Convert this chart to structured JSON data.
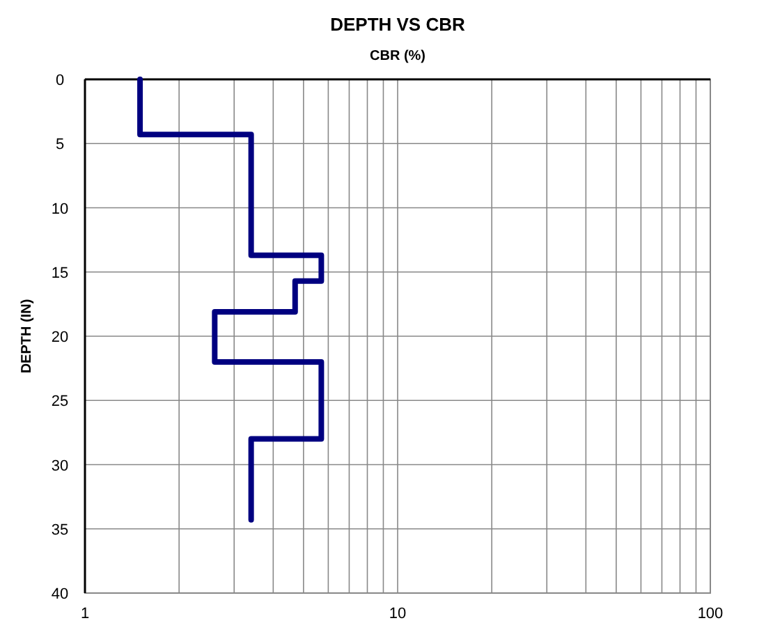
{
  "chart_data": {
    "type": "line",
    "title": "DEPTH VS CBR",
    "xlabel": "CBR (%)",
    "ylabel": "DEPTH (IN)",
    "x": [
      1.5,
      1.5,
      3.4,
      3.4,
      5.7,
      5.7,
      4.7,
      4.7,
      2.6,
      2.6,
      5.7,
      5.7,
      3.4,
      3.4
    ],
    "series": [
      {
        "color": "#000080",
        "values": [
          0,
          4.3,
          4.3,
          13.7,
          13.7,
          15.7,
          15.7,
          18.1,
          18.1,
          22,
          22,
          28,
          28,
          34.3
        ]
      }
    ],
    "log": "x",
    "xlim": [
      1,
      100
    ],
    "xticks": [
      1,
      {
        "value": 2,
        "label": null
      },
      {
        "value": 3,
        "label": null
      },
      {
        "value": 4,
        "label": null
      },
      {
        "value": 5,
        "label": null
      },
      {
        "value": 6,
        "label": null
      },
      {
        "value": 7,
        "label": null
      },
      {
        "value": 8,
        "label": null
      },
      {
        "value": 9,
        "label": null
      },
      10,
      {
        "value": 20,
        "label": null
      },
      {
        "value": 30,
        "label": null
      },
      {
        "value": 40,
        "label": null
      },
      {
        "value": 50,
        "label": null
      },
      {
        "value": 60,
        "label": null
      },
      {
        "value": 70,
        "label": null
      },
      {
        "value": 80,
        "label": null
      },
      {
        "value": 90,
        "label": null
      },
      100
    ],
    "ylim": [
      40,
      0
    ],
    "yticks": [
      0,
      5,
      10,
      15,
      20,
      25,
      30,
      35,
      40
    ],
    "grid": true,
    "marker": "none",
    "line_style": "solid"
  }
}
